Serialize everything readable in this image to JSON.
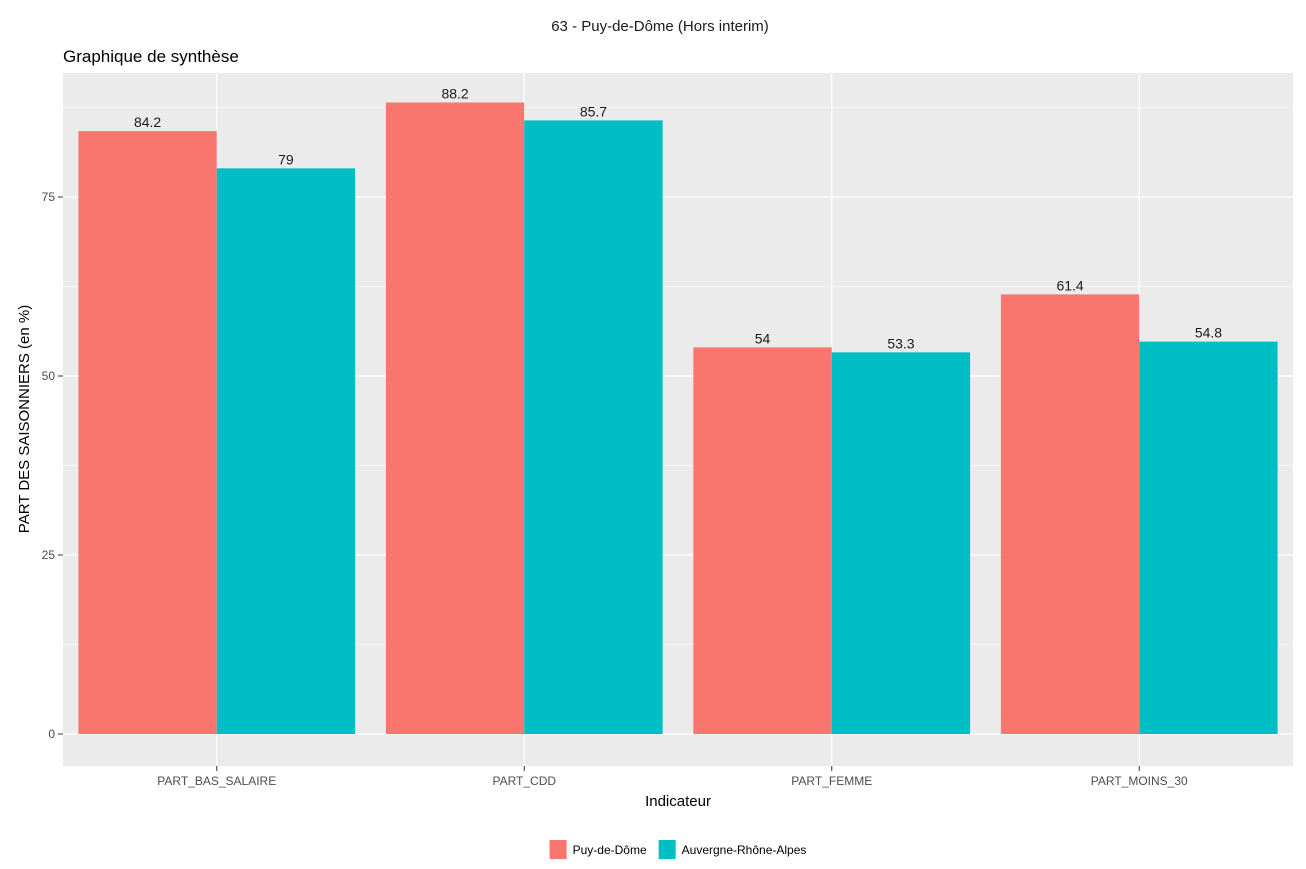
{
  "chart_data": {
    "type": "bar",
    "title": "63 - Puy-de-Dôme (Hors interim)",
    "subtitle": "Graphique de synthèse",
    "xlabel": "Indicateur",
    "ylabel": "PART DES SAISONNIERS (en %)",
    "categories": [
      "PART_BAS_SALAIRE",
      "PART_CDD",
      "PART_FEMME",
      "PART_MOINS_30"
    ],
    "series": [
      {
        "name": "Puy-de-Dôme",
        "color": "#F8766D",
        "values": [
          84.2,
          88.2,
          54,
          61.4
        ]
      },
      {
        "name": "Auvergne-Rhône-Alpes",
        "color": "#00BFC4",
        "values": [
          79,
          85.7,
          53.3,
          54.8
        ]
      }
    ],
    "ylim": [
      0,
      90
    ],
    "yticks": [
      0,
      25,
      50,
      75
    ],
    "grid": true,
    "legend_position": "bottom",
    "panel_background": "#EBEBEB"
  }
}
